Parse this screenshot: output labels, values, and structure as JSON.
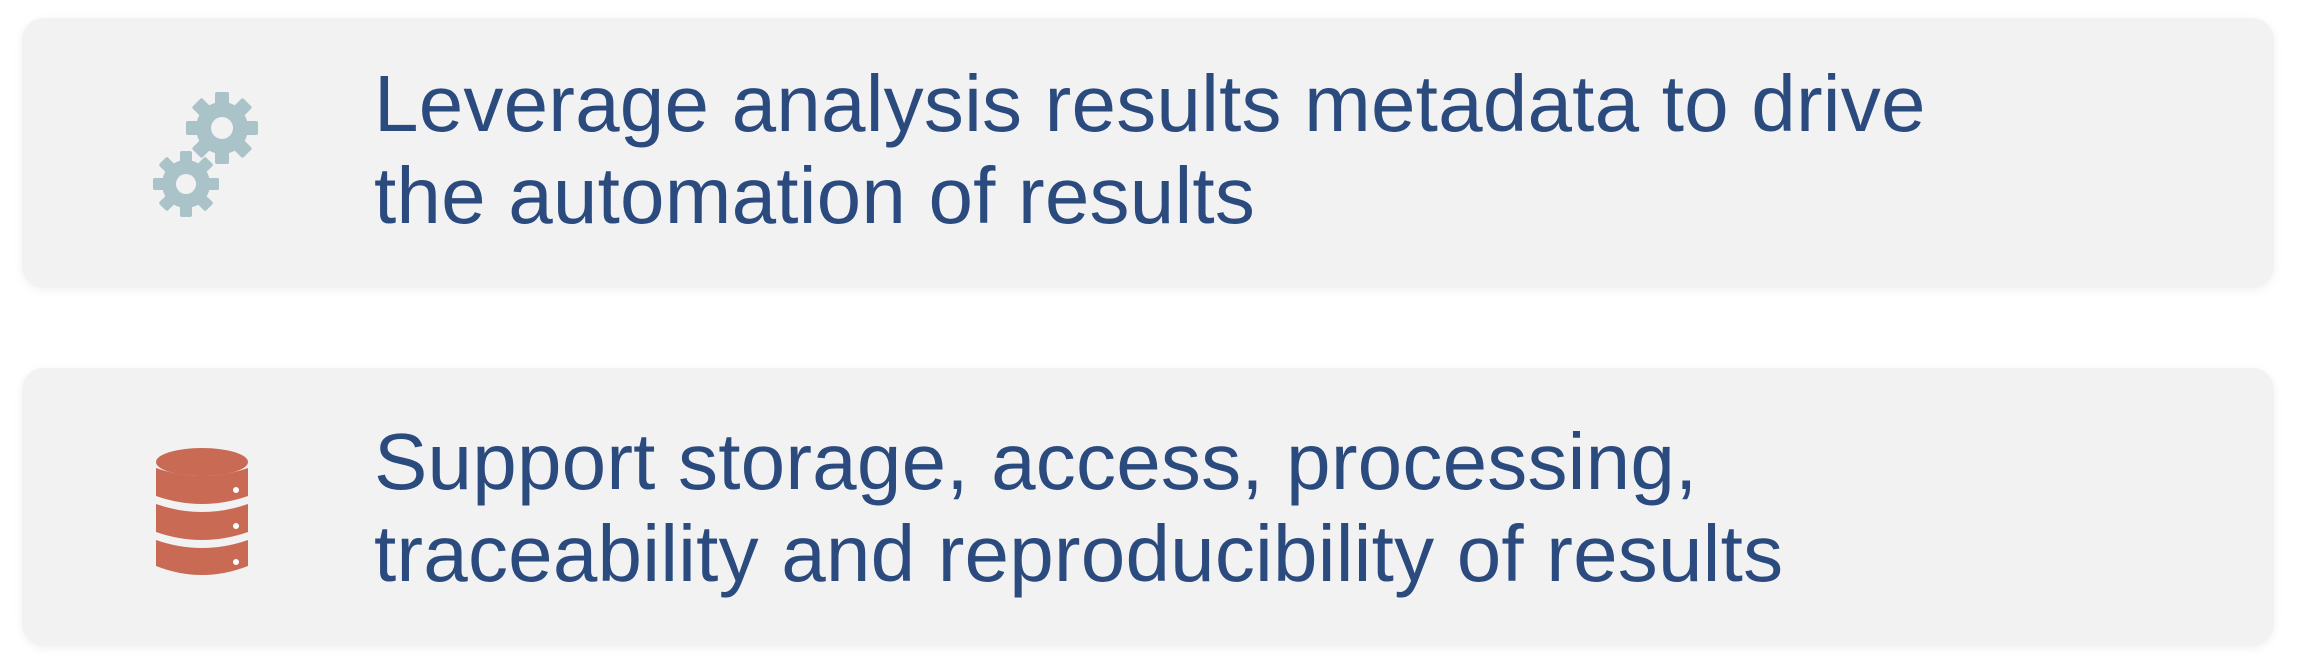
{
  "cards": [
    {
      "icon": "gears-icon",
      "icon_color": "#a9c3c8",
      "lines": [
        "Leverage analysis results metadata to drive",
        "the automation of results"
      ]
    },
    {
      "icon": "database-icon",
      "icon_color": "#c96a55",
      "lines": [
        "Support storage, access, processing,",
        "traceability and reproducibility of results"
      ]
    }
  ],
  "colors": {
    "text": "#2b4a7e",
    "card_background": "#f2f2f3"
  }
}
